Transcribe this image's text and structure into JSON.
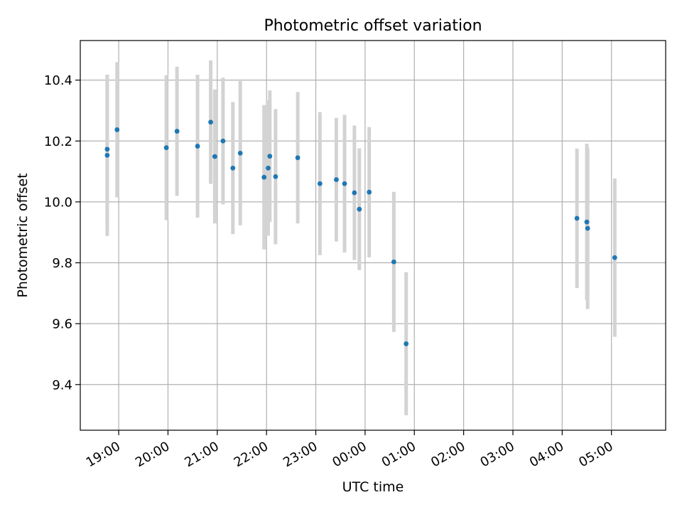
{
  "chart_data": {
    "type": "scatter",
    "title": "Photometric offset variation",
    "xlabel": "UTC time",
    "ylabel": "Photometric offset",
    "x_ticks": [
      {
        "label": "19:00",
        "hours": 19.0
      },
      {
        "label": "20:00",
        "hours": 20.0
      },
      {
        "label": "21:00",
        "hours": 21.0
      },
      {
        "label": "22:00",
        "hours": 22.0
      },
      {
        "label": "23:00",
        "hours": 23.0
      },
      {
        "label": "00:00",
        "hours": 24.0
      },
      {
        "label": "01:00",
        "hours": 25.0
      },
      {
        "label": "02:00",
        "hours": 26.0
      },
      {
        "label": "03:00",
        "hours": 27.0
      },
      {
        "label": "04:00",
        "hours": 28.0
      },
      {
        "label": "05:00",
        "hours": 29.0
      }
    ],
    "y_ticks": [
      "9.4",
      "9.6",
      "9.8",
      "10.0",
      "10.2",
      "10.4"
    ],
    "xlim": [
      18.22,
      30.1
    ],
    "ylim": [
      9.25,
      10.53
    ],
    "grid": true,
    "colors": {
      "points": "#1f77b4",
      "errorbars": "#d3d3d3",
      "grid": "#b0b0b0"
    },
    "points": [
      {
        "time": "18:46",
        "y": 10.173,
        "err": 0.245
      },
      {
        "time": "18:46",
        "y": 10.153,
        "err": 0.265
      },
      {
        "time": "18:58",
        "y": 10.237,
        "err": 0.222
      },
      {
        "time": "19:58",
        "y": 10.178,
        "err": 0.238
      },
      {
        "time": "20:11",
        "y": 10.232,
        "err": 0.212
      },
      {
        "time": "20:36",
        "y": 10.183,
        "err": 0.235
      },
      {
        "time": "20:52",
        "y": 10.262,
        "err": 0.203
      },
      {
        "time": "20:57",
        "y": 10.149,
        "err": 0.22
      },
      {
        "time": "21:07",
        "y": 10.2,
        "err": 0.208
      },
      {
        "time": "21:19",
        "y": 10.111,
        "err": 0.217
      },
      {
        "time": "21:28",
        "y": 10.16,
        "err": 0.237
      },
      {
        "time": "21:57",
        "y": 10.081,
        "err": 0.237
      },
      {
        "time": "22:02",
        "y": 10.111,
        "err": 0.222
      },
      {
        "time": "22:04",
        "y": 10.15,
        "err": 0.216
      },
      {
        "time": "22:11",
        "y": 10.083,
        "err": 0.222
      },
      {
        "time": "22:38",
        "y": 10.145,
        "err": 0.216
      },
      {
        "time": "23:05",
        "y": 10.06,
        "err": 0.235
      },
      {
        "time": "23:25",
        "y": 10.073,
        "err": 0.203
      },
      {
        "time": "23:35",
        "y": 10.06,
        "err": 0.226
      },
      {
        "time": "23:47",
        "y": 10.03,
        "err": 0.221
      },
      {
        "time": "23:53",
        "y": 9.976,
        "err": 0.2
      },
      {
        "time": "00:05",
        "y": 10.032,
        "err": 0.214
      },
      {
        "time": "00:35",
        "y": 9.803,
        "err": 0.23
      },
      {
        "time": "00:50",
        "y": 9.534,
        "err": 0.235
      },
      {
        "time": "04:18",
        "y": 9.946,
        "err": 0.229
      },
      {
        "time": "04:30",
        "y": 9.934,
        "err": 0.257
      },
      {
        "time": "04:31",
        "y": 9.913,
        "err": 0.265
      },
      {
        "time": "05:04",
        "y": 9.817,
        "err": 0.26
      }
    ]
  }
}
